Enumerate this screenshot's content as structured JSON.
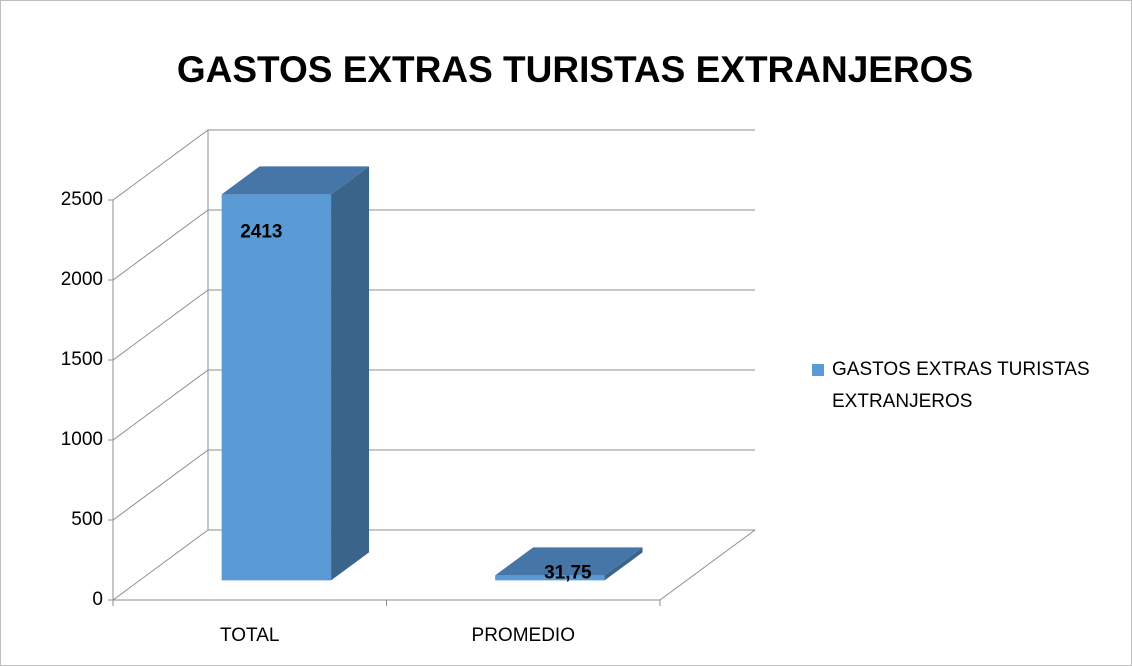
{
  "chart_data": {
    "type": "bar3d",
    "title": "GASTOS EXTRAS TURISTAS EXTRANJEROS",
    "categories": [
      "TOTAL",
      "PROMEDIO"
    ],
    "series": [
      {
        "name": "GASTOS EXTRAS TURISTAS EXTRANJEROS",
        "color": "#5b9bd5",
        "values": [
          2413,
          31.75
        ],
        "value_labels": [
          "2413",
          "31,75"
        ]
      }
    ],
    "ylim": [
      0,
      2500
    ],
    "yticks": [
      0,
      500,
      1000,
      1500,
      2000,
      2500
    ],
    "grid": true,
    "legend": "right"
  }
}
